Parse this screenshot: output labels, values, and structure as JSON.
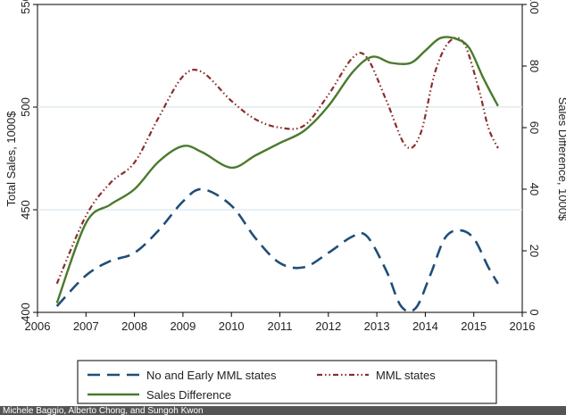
{
  "chart_data": {
    "type": "line",
    "title": "",
    "xlabel": "",
    "ylabel": "Total Sales, 1000$",
    "y2label": "Sales Difference, 1000$",
    "xlim": [
      2006,
      2016
    ],
    "ylim": [
      400,
      550
    ],
    "y2lim": [
      0,
      100
    ],
    "xticks": [
      2006,
      2007,
      2008,
      2009,
      2010,
      2011,
      2012,
      2013,
      2014,
      2015,
      2016
    ],
    "yticks": [
      400,
      450,
      500,
      550
    ],
    "y2ticks": [
      0,
      20,
      40,
      60,
      80,
      100
    ],
    "grid": true,
    "legend_position": "bottom",
    "series": [
      {
        "name": "No and Early MML states",
        "axis": "left",
        "color": "#1f4e79",
        "style": "dashed",
        "x": [
          2006.4,
          2007.0,
          2007.5,
          2008.0,
          2008.5,
          2009.0,
          2009.4,
          2010.0,
          2010.5,
          2011.0,
          2011.5,
          2012.0,
          2012.5,
          2012.8,
          2013.2,
          2013.5,
          2013.8,
          2014.1,
          2014.4,
          2014.7,
          2015.0,
          2015.3,
          2015.5
        ],
        "values": [
          403,
          418,
          425,
          429,
          440,
          454,
          460,
          452,
          436,
          424,
          422,
          429,
          437,
          437,
          420,
          403,
          402,
          418,
          436,
          440,
          436,
          422,
          414
        ]
      },
      {
        "name": "MML states",
        "axis": "left",
        "color": "#8b2e2e",
        "style": "dash-dot",
        "x": [
          2006.4,
          2007.0,
          2007.5,
          2008.0,
          2008.5,
          2009.0,
          2009.4,
          2010.0,
          2010.5,
          2011.0,
          2011.5,
          2012.0,
          2012.5,
          2012.8,
          2013.2,
          2013.6,
          2013.9,
          2014.2,
          2014.5,
          2014.8,
          2015.1,
          2015.3,
          2015.5
        ],
        "values": [
          414,
          447,
          463,
          473,
          495,
          515,
          517,
          503,
          494,
          490,
          491,
          506,
          524,
          524,
          503,
          481,
          487,
          517,
          532,
          531,
          509,
          490,
          480
        ]
      },
      {
        "name": "Sales Difference",
        "axis": "right",
        "color": "#4a7a2c",
        "style": "solid",
        "x": [
          2006.4,
          2007.0,
          2007.5,
          2008.0,
          2008.5,
          2009.0,
          2009.4,
          2010.0,
          2010.5,
          2011.0,
          2011.5,
          2012.0,
          2012.5,
          2012.9,
          2013.3,
          2013.7,
          2014.0,
          2014.3,
          2014.6,
          2014.9,
          2015.2,
          2015.5
        ],
        "values": [
          3,
          29,
          35,
          40,
          49,
          54,
          52,
          47,
          51,
          55,
          59,
          67,
          78,
          83,
          81,
          81,
          85,
          89,
          89,
          86,
          76,
          67
        ]
      }
    ]
  },
  "credit": "Michele Baggio, Alberto Chong, and Sungoh Kwon"
}
